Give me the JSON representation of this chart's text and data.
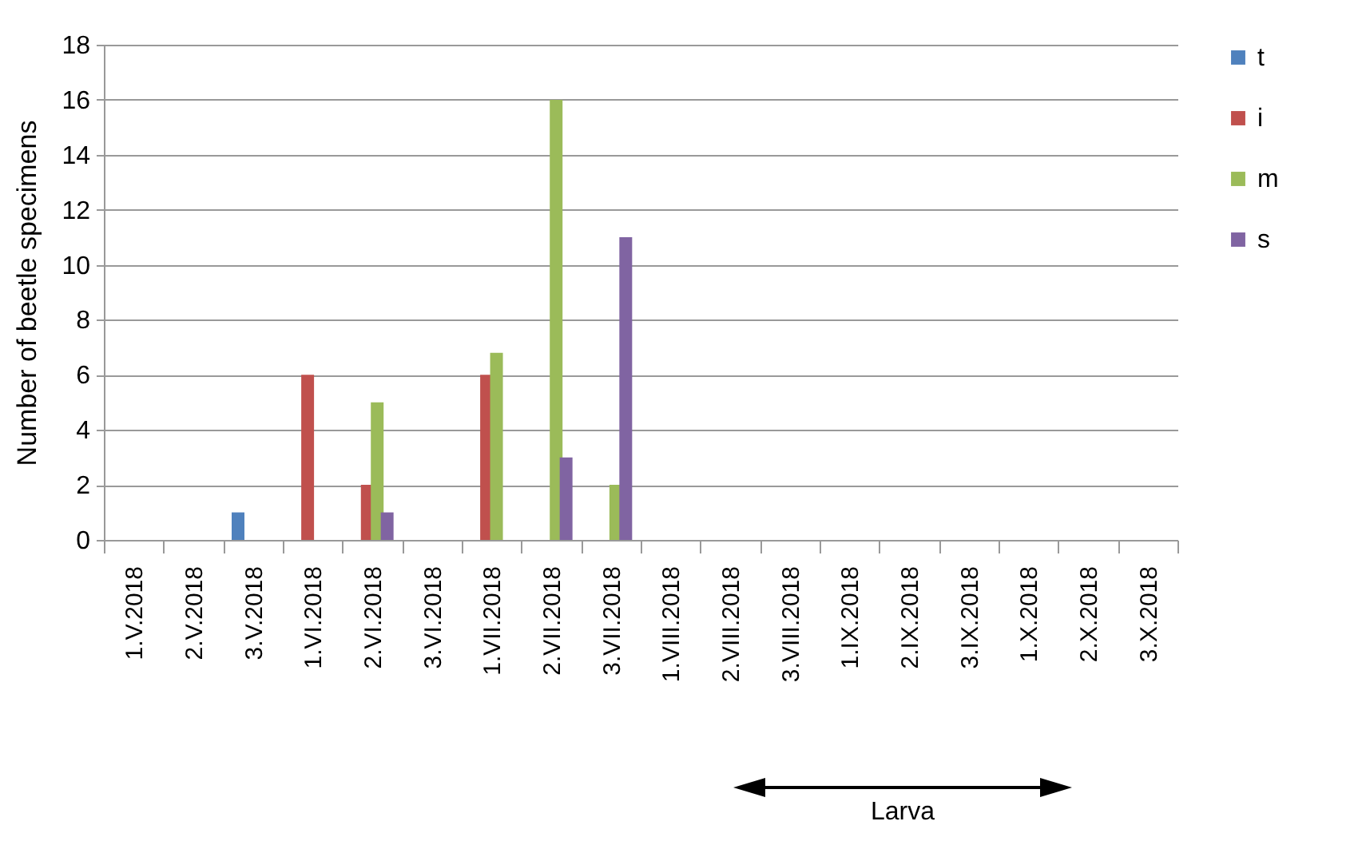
{
  "chart_data": {
    "type": "bar",
    "ylabel": "Number of beetle specimens",
    "categories": [
      "1.V.2018",
      "2.V.2018",
      "3.V.2018",
      "1.VI.2018",
      "2.VI.2018",
      "3.VI.2018",
      "1.VII.2018",
      "2.VII.2018",
      "3.VII.2018",
      "1.VIII.2018",
      "2.VIII.2018",
      "3.VIII.2018",
      "1.IX.2018",
      "2.IX.2018",
      "3.IX.2018",
      "1.X.2018",
      "2.X.2018",
      "3.X.2018"
    ],
    "series": [
      {
        "name": "t",
        "color": "#4f81bd",
        "values": [
          0,
          0,
          1,
          0,
          0,
          0,
          0,
          0,
          0,
          0,
          0,
          0,
          0,
          0,
          0,
          0,
          0,
          0
        ]
      },
      {
        "name": "i",
        "color": "#c0504d",
        "values": [
          0,
          0,
          0,
          6,
          2,
          0,
          6,
          0,
          0,
          0,
          0,
          0,
          0,
          0,
          0,
          0,
          0,
          0
        ]
      },
      {
        "name": "m",
        "color": "#9bbb59",
        "values": [
          0,
          0,
          0,
          0,
          5,
          0,
          6.8,
          16,
          2,
          0,
          0,
          0,
          0,
          0,
          0,
          0,
          0,
          0
        ]
      },
      {
        "name": "s",
        "color": "#8064a2",
        "values": [
          0,
          0,
          0,
          0,
          1,
          0,
          0,
          3,
          11,
          0,
          0,
          0,
          0,
          0,
          0,
          0,
          0,
          0
        ]
      }
    ],
    "ylim": [
      0,
      18
    ],
    "yticks": [
      0,
      2,
      4,
      6,
      8,
      10,
      12,
      14,
      16,
      18
    ],
    "grid": "y",
    "legend": "right",
    "annotations": [
      "Larva"
    ]
  }
}
